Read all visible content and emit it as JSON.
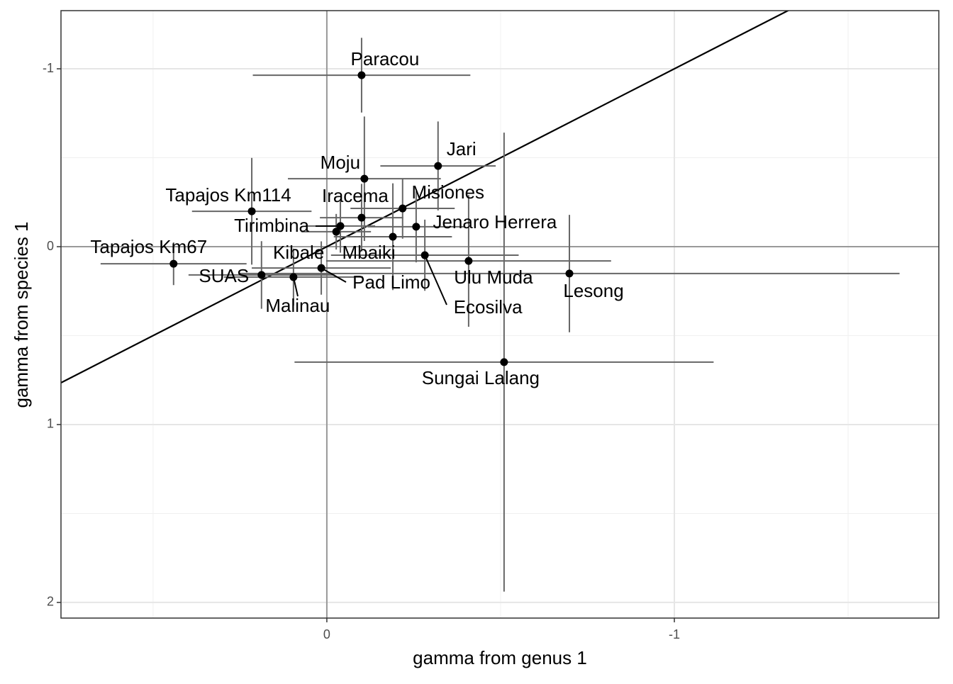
{
  "chart_data": {
    "type": "scatter",
    "xlabel": "gamma from genus 1",
    "ylabel": "gamma from species 1",
    "labels": [
      "Paracou",
      "Jari",
      "Moju",
      "Misiones",
      "Iracema",
      "Tapajos Km114",
      "Tirimbina",
      "Jenaro Herrera",
      "Kibale",
      "Mbaiki",
      "Tapajos Km67",
      "Ecosilva",
      "Ulu Muda",
      "Lesong",
      "SUAS",
      "Pad Limo",
      "Malinau",
      "Sungai Lalang"
    ],
    "x": [
      -0.1,
      -0.32,
      -0.108,
      -0.218,
      -0.1,
      0.216,
      -0.039,
      -0.257,
      -0.027,
      -0.19,
      0.441,
      -0.282,
      -0.408,
      -0.698,
      0.188,
      0.016,
      0.096,
      -0.51
    ],
    "xerr": [
      0.313,
      0.166,
      0.22,
      0.15,
      0.12,
      0.172,
      0.1,
      0.14,
      0.1,
      0.17,
      0.21,
      0.27,
      0.41,
      0.95,
      0.21,
      0.2,
      0.2,
      0.603
    ],
    "y": [
      -0.964,
      -0.454,
      -0.382,
      -0.215,
      -0.163,
      -0.199,
      -0.116,
      -0.112,
      -0.084,
      -0.056,
      0.096,
      0.048,
      0.08,
      0.151,
      0.159,
      0.12,
      0.171,
      0.649
    ],
    "yerr": [
      0.21,
      0.25,
      0.35,
      0.17,
      0.19,
      0.3,
      0.15,
      0.2,
      0.1,
      0.3,
      0.12,
      0.2,
      0.37,
      0.33,
      0.19,
      0.15,
      0.16,
      1.29
    ],
    "color": "#000000",
    "errorbar_color": "#666666",
    "xlim": [
      0.765,
      -1.761
    ],
    "ylim": [
      -1.327,
      2.088
    ],
    "xticks": [
      0,
      -1
    ],
    "yticks": [
      -1,
      0,
      1,
      2
    ],
    "xminor": [
      0.5,
      -0.5,
      -1.5
    ],
    "yminor": [
      -0.5,
      0.5,
      1.5
    ],
    "hline": 0,
    "vline": 0,
    "reference_line": {
      "slope": 1,
      "intercept": 0
    },
    "grid": true
  }
}
